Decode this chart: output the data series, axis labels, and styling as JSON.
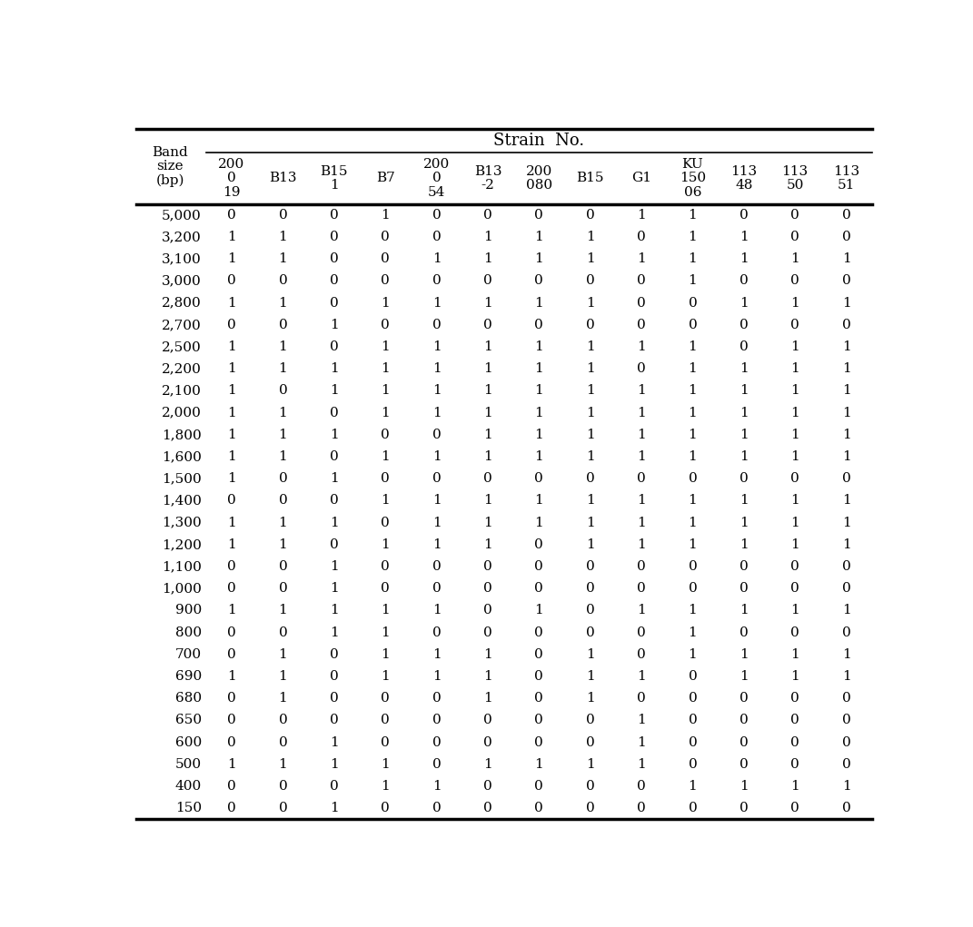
{
  "title": "Strain  No.",
  "col_headers": [
    "200\n0\n19",
    "B13",
    "B15\n1",
    "B7",
    "200\n0\n54",
    "B13\n-2",
    "200\n080",
    "B15",
    "G1",
    "KU\n150\n06",
    "113\n48",
    "113\n50",
    "113\n51"
  ],
  "band_sizes": [
    "5,000",
    "3,200",
    "3,100",
    "3,000",
    "2,800",
    "2,700",
    "2,500",
    "2,200",
    "2,100",
    "2,000",
    "1,800",
    "1,600",
    "1,500",
    "1,400",
    "1,300",
    "1,200",
    "1,100",
    "1,000",
    "900",
    "800",
    "700",
    "690",
    "680",
    "650",
    "600",
    "500",
    "400",
    "150"
  ],
  "data": [
    [
      0,
      0,
      0,
      1,
      0,
      0,
      0,
      0,
      1,
      1,
      0,
      0,
      0
    ],
    [
      1,
      1,
      0,
      0,
      0,
      1,
      1,
      1,
      0,
      1,
      1,
      0,
      0
    ],
    [
      1,
      1,
      0,
      0,
      1,
      1,
      1,
      1,
      1,
      1,
      1,
      1,
      1
    ],
    [
      0,
      0,
      0,
      0,
      0,
      0,
      0,
      0,
      0,
      1,
      0,
      0,
      0
    ],
    [
      1,
      1,
      0,
      1,
      1,
      1,
      1,
      1,
      0,
      0,
      1,
      1,
      1
    ],
    [
      0,
      0,
      1,
      0,
      0,
      0,
      0,
      0,
      0,
      0,
      0,
      0,
      0
    ],
    [
      1,
      1,
      0,
      1,
      1,
      1,
      1,
      1,
      1,
      1,
      0,
      1,
      1
    ],
    [
      1,
      1,
      1,
      1,
      1,
      1,
      1,
      1,
      0,
      1,
      1,
      1,
      1
    ],
    [
      1,
      0,
      1,
      1,
      1,
      1,
      1,
      1,
      1,
      1,
      1,
      1,
      1
    ],
    [
      1,
      1,
      0,
      1,
      1,
      1,
      1,
      1,
      1,
      1,
      1,
      1,
      1
    ],
    [
      1,
      1,
      1,
      0,
      0,
      1,
      1,
      1,
      1,
      1,
      1,
      1,
      1
    ],
    [
      1,
      1,
      0,
      1,
      1,
      1,
      1,
      1,
      1,
      1,
      1,
      1,
      1
    ],
    [
      1,
      0,
      1,
      0,
      0,
      0,
      0,
      0,
      0,
      0,
      0,
      0,
      0
    ],
    [
      0,
      0,
      0,
      1,
      1,
      1,
      1,
      1,
      1,
      1,
      1,
      1,
      1
    ],
    [
      1,
      1,
      1,
      0,
      1,
      1,
      1,
      1,
      1,
      1,
      1,
      1,
      1
    ],
    [
      1,
      1,
      0,
      1,
      1,
      1,
      0,
      1,
      1,
      1,
      1,
      1,
      1
    ],
    [
      0,
      0,
      1,
      0,
      0,
      0,
      0,
      0,
      0,
      0,
      0,
      0,
      0
    ],
    [
      0,
      0,
      1,
      0,
      0,
      0,
      0,
      0,
      0,
      0,
      0,
      0,
      0
    ],
    [
      1,
      1,
      1,
      1,
      1,
      0,
      1,
      0,
      1,
      1,
      1,
      1,
      1
    ],
    [
      0,
      0,
      1,
      1,
      0,
      0,
      0,
      0,
      0,
      1,
      0,
      0,
      0
    ],
    [
      0,
      1,
      0,
      1,
      1,
      1,
      0,
      1,
      0,
      1,
      1,
      1,
      1
    ],
    [
      1,
      1,
      0,
      1,
      1,
      1,
      0,
      1,
      1,
      0,
      1,
      1,
      1
    ],
    [
      0,
      1,
      0,
      0,
      0,
      1,
      0,
      1,
      0,
      0,
      0,
      0,
      0
    ],
    [
      0,
      0,
      0,
      0,
      0,
      0,
      0,
      0,
      1,
      0,
      0,
      0,
      0
    ],
    [
      0,
      0,
      1,
      0,
      0,
      0,
      0,
      0,
      1,
      0,
      0,
      0,
      0
    ],
    [
      1,
      1,
      1,
      1,
      0,
      1,
      1,
      1,
      1,
      0,
      0,
      0,
      0
    ],
    [
      0,
      0,
      0,
      1,
      1,
      0,
      0,
      0,
      0,
      1,
      1,
      1,
      1
    ],
    [
      0,
      0,
      1,
      0,
      0,
      0,
      0,
      0,
      0,
      0,
      0,
      0,
      0
    ]
  ],
  "bg_color": "#ffffff",
  "text_color": "#000000",
  "font_size": 11,
  "header_font_size": 11,
  "title_font_size": 13
}
